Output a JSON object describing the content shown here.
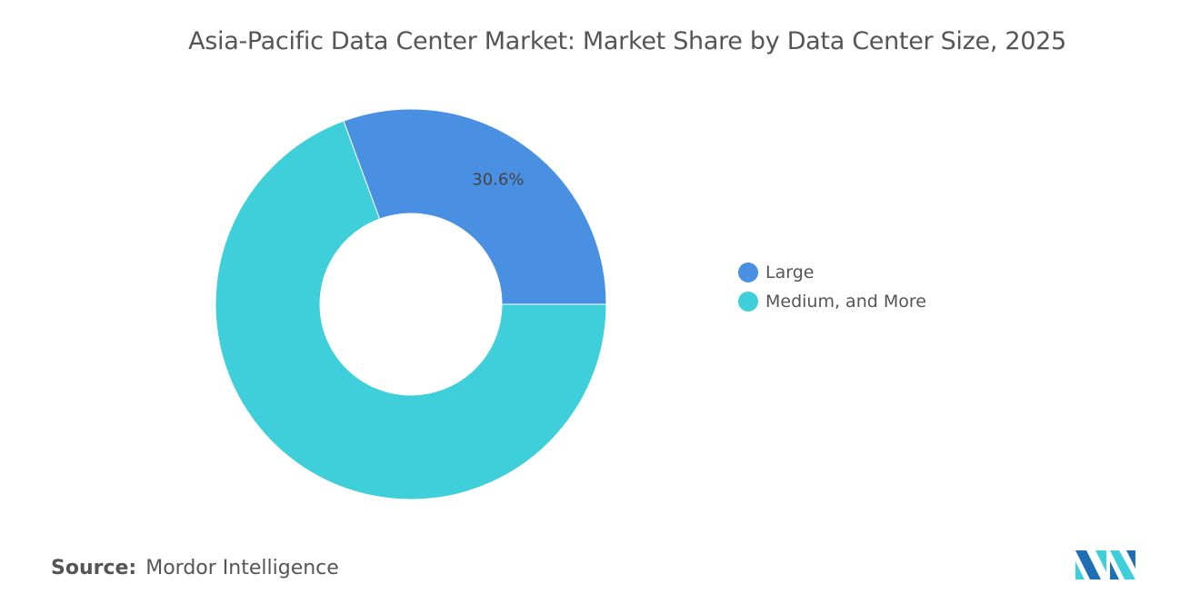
{
  "chart_data": {
    "type": "pie",
    "donut": true,
    "title": "Asia-Pacific Data Center Market: Market Share by Data Center Size, 2025",
    "categories": [
      "Large",
      "Medium, and More"
    ],
    "values": [
      30.6,
      69.4
    ],
    "data_labels": [
      "30.6%",
      ""
    ],
    "colors": [
      "#4a90e2",
      "#3ecfda"
    ],
    "legend_position": "right"
  },
  "source": {
    "label": "Source:",
    "value": "Mordor Intelligence"
  },
  "logo": {
    "colors": [
      "#1f6fb5",
      "#3ecfda"
    ]
  }
}
